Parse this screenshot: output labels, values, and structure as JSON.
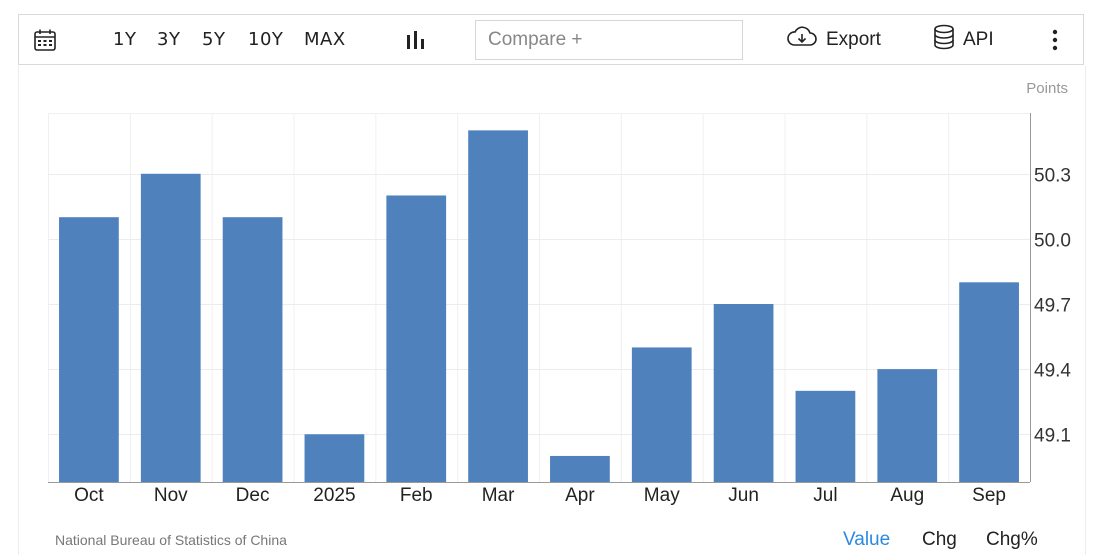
{
  "toolbar": {
    "calendar_icon": "calendar-icon",
    "ranges": [
      "1Y",
      "3Y",
      "5Y",
      "10Y",
      "MAX"
    ],
    "chart_type_icon": "bar-chart-icon",
    "compare_placeholder": "Compare +",
    "export_label": "Export",
    "export_icon": "cloud-download-icon",
    "api_label": "API",
    "api_icon": "database-icon",
    "more_icon": "more-vertical-icon"
  },
  "chart_data": {
    "type": "bar",
    "categories": [
      "Oct",
      "Nov",
      "Dec",
      "2025",
      "Feb",
      "Mar",
      "Apr",
      "May",
      "Jun",
      "Jul",
      "Aug",
      "Sep"
    ],
    "values": [
      50.1,
      50.3,
      50.1,
      49.1,
      50.2,
      50.5,
      49.0,
      49.5,
      49.7,
      49.3,
      49.4,
      49.8
    ],
    "yticks": [
      "50.3",
      "50.0",
      "49.7",
      "49.4",
      "49.1"
    ],
    "ylim": [
      48.88,
      50.58
    ],
    "ylabel": "Points",
    "bar_color": "#4f81bd",
    "grid": true
  },
  "footer": {
    "source": "National Bureau of Statistics of China",
    "tabs": [
      "Value",
      "Chg",
      "Chg%"
    ],
    "active_tab": "Value",
    "active_color": "#2a8ae2"
  }
}
